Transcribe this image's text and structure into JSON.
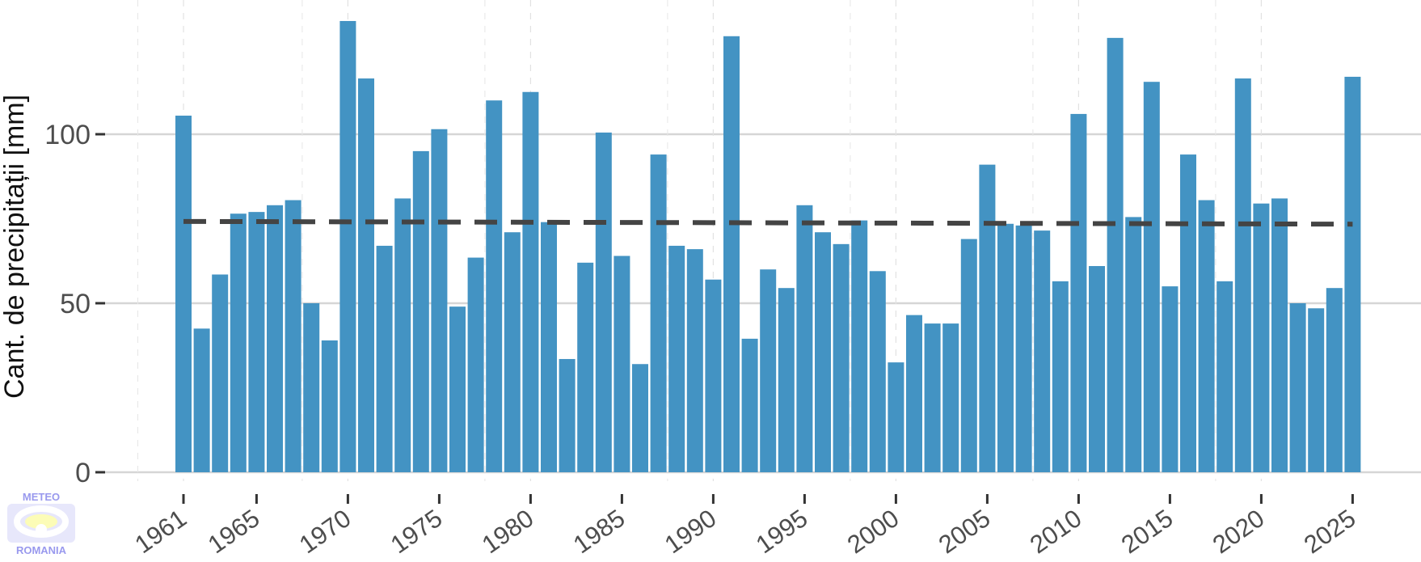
{
  "chart_data": {
    "type": "bar",
    "ylabel": "Cant. de precipitații [mm]",
    "xlabel": "",
    "ylim": [
      0,
      140
    ],
    "xlim": [
      1960.0,
      2026.5
    ],
    "yticks": [
      0,
      50,
      100
    ],
    "xticks": [
      1961,
      1965,
      1970,
      1975,
      1980,
      1985,
      1990,
      1995,
      2000,
      2005,
      2010,
      2015,
      2020,
      2025
    ],
    "x": [
      1961,
      1962,
      1963,
      1964,
      1965,
      1966,
      1967,
      1968,
      1969,
      1970,
      1971,
      1972,
      1973,
      1974,
      1975,
      1976,
      1977,
      1978,
      1979,
      1980,
      1981,
      1982,
      1983,
      1984,
      1985,
      1986,
      1987,
      1988,
      1989,
      1990,
      1991,
      1992,
      1993,
      1994,
      1995,
      1996,
      1997,
      1998,
      1999,
      2000,
      2001,
      2002,
      2003,
      2004,
      2005,
      2006,
      2007,
      2008,
      2009,
      2010,
      2011,
      2012,
      2013,
      2014,
      2015,
      2016,
      2017,
      2018,
      2019,
      2020,
      2021,
      2022,
      2023,
      2024,
      2025
    ],
    "values": [
      105.5,
      42.5,
      58.5,
      76.5,
      77,
      79,
      80.5,
      50,
      39,
      133.5,
      116.5,
      67,
      81,
      95,
      101.5,
      49,
      63.5,
      110,
      71,
      112.5,
      74,
      33.5,
      62,
      100.5,
      64,
      32,
      94,
      67,
      66,
      57,
      129,
      39.5,
      60,
      54.5,
      79,
      71,
      67.5,
      74.5,
      59.5,
      32.5,
      46.5,
      44,
      44,
      69,
      91,
      73.5,
      73,
      71.5,
      56.5,
      106,
      61,
      128.5,
      75.5,
      115.5,
      55,
      94,
      80.5,
      56.5,
      116.5,
      79.5,
      81,
      50,
      48.5,
      54.5,
      117
    ],
    "bar_color": "#4393c3",
    "reference_line": {
      "start_value": 74.2,
      "end_value": 73.4,
      "style": "dashed",
      "color": "#444444"
    },
    "grid": true,
    "legend": "none"
  },
  "logo": {
    "top_text": "METEO",
    "bottom_text": "ROMANIA"
  }
}
